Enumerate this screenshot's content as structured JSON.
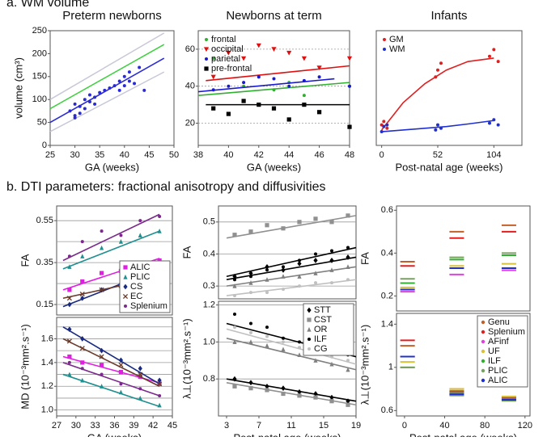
{
  "sections": [
    {
      "title": "a. WM volume"
    },
    {
      "title": "b. DTI parameters: fractional anisotropy and diffusivities"
    }
  ],
  "chart_data": [
    {
      "type": "scatter",
      "title": "Preterm newborns",
      "xlabel": "GA (weeks)",
      "ylabel": "volume (cm³)",
      "xlim": [
        25,
        50
      ],
      "xticks": [
        25,
        30,
        35,
        40,
        45,
        50
      ],
      "ylim": [
        0,
        250
      ],
      "yticks": [
        0,
        50,
        100,
        150,
        200,
        250
      ],
      "grid": false,
      "series": [
        {
          "color": "#2b2bd6",
          "marker": "circle",
          "x": [
            29,
            30,
            30,
            31,
            31,
            32,
            33,
            33,
            34,
            35,
            36,
            37,
            38,
            39,
            39,
            40,
            40,
            41,
            41,
            42,
            43,
            44,
            30,
            32,
            34
          ],
          "values": [
            75,
            60,
            90,
            85,
            70,
            100,
            95,
            110,
            105,
            115,
            120,
            125,
            130,
            140,
            120,
            150,
            130,
            160,
            140,
            135,
            170,
            120,
            65,
            80,
            90
          ],
          "fit_x": [
            25,
            48
          ],
          "fit": [
            50,
            190
          ]
        }
      ],
      "lines": [
        {
          "color": "#40d040",
          "x": [
            25,
            48
          ],
          "values": [
            80,
            220
          ]
        },
        {
          "color": "#c8c8d8",
          "x": [
            25,
            48
          ],
          "values": [
            100,
            245
          ]
        },
        {
          "color": "#c8c8d8",
          "x": [
            25,
            48
          ],
          "values": [
            30,
            160
          ]
        }
      ]
    },
    {
      "type": "scatter",
      "title": "Newborns at term",
      "xlabel": "GA (weeks)",
      "xlim": [
        38,
        48
      ],
      "xticks": [
        38,
        40,
        42,
        44,
        46,
        48
      ],
      "ylim": [
        8,
        70
      ],
      "yticks": [
        20,
        40,
        60
      ],
      "grid": true,
      "legend": "upper left",
      "series": [
        {
          "name": "frontal",
          "color": "#30b030",
          "marker": "circle",
          "x": [
            39,
            41,
            42,
            43,
            44,
            45,
            48
          ],
          "values": [
            55,
            40,
            45,
            38,
            42,
            35,
            40
          ],
          "fit_x": [
            38,
            48
          ],
          "fit": [
            35,
            42
          ]
        },
        {
          "name": "occipital",
          "color": "#e01010",
          "marker": "triangle-down",
          "x": [
            39,
            40,
            41,
            42,
            43,
            44,
            45,
            46,
            48
          ],
          "values": [
            45,
            58,
            55,
            62,
            60,
            58,
            55,
            50,
            55
          ],
          "fit_x": [
            38.5,
            48
          ],
          "fit": [
            43,
            51
          ]
        },
        {
          "name": "parietal",
          "color": "#1a1ad0",
          "marker": "circle",
          "x": [
            39,
            40,
            41,
            42,
            43,
            44,
            45,
            46,
            48
          ],
          "values": [
            38,
            40,
            42,
            45,
            44,
            40,
            43,
            45,
            40
          ],
          "fit_x": [
            38,
            47
          ],
          "fit": [
            37,
            44
          ]
        },
        {
          "name": "pre-frontal",
          "color": "#000000",
          "marker": "square",
          "x": [
            39,
            40,
            41,
            42,
            43,
            44,
            45,
            46,
            48
          ],
          "values": [
            28,
            25,
            32,
            30,
            28,
            22,
            30,
            26,
            18
          ],
          "fit_x": [
            38.5,
            48
          ],
          "fit": [
            30,
            30
          ]
        }
      ]
    },
    {
      "type": "scatter",
      "title": "Infants",
      "xlabel": "Post-natal age (weeks)",
      "xlim": [
        -5,
        130
      ],
      "xticks": [
        0,
        52,
        104
      ],
      "ylim": [
        80,
        750
      ],
      "legend": "upper left",
      "series": [
        {
          "name": "GM",
          "color": "#e02020",
          "marker": "circle",
          "x": [
            0,
            2,
            5,
            50,
            52,
            55,
            100,
            104,
            108
          ],
          "values": [
            200,
            220,
            180,
            480,
            520,
            560,
            600,
            640,
            570
          ],
          "fit_x": [
            0,
            20,
            40,
            60,
            80,
            104
          ],
          "fit": [
            170,
            330,
            440,
            520,
            570,
            590
          ]
        },
        {
          "name": "WM",
          "color": "#2030d0",
          "marker": "circle",
          "x": [
            0,
            2,
            5,
            50,
            52,
            55,
            100,
            104,
            108
          ],
          "values": [
            160,
            190,
            200,
            170,
            200,
            180,
            210,
            230,
            200
          ],
          "fit_x": [
            0,
            20,
            40,
            60,
            80,
            104
          ],
          "fit": [
            160,
            170,
            180,
            190,
            205,
            225
          ]
        }
      ]
    },
    {
      "type": "scatter",
      "ylabel": "FA",
      "xlim": [
        27,
        45
      ],
      "ylim": [
        0.1,
        0.62
      ],
      "yticks": [
        0.15,
        0.35,
        0.55
      ],
      "minor_yticks": [
        0.25,
        0.45
      ],
      "grid": true,
      "legend": "lower right",
      "x": [
        29,
        31,
        34,
        37,
        40,
        43
      ],
      "series": [
        {
          "name": "ALIC",
          "color": "#e020e0",
          "marker": "square",
          "values": [
            0.22,
            0.26,
            0.3,
            0.31,
            0.33,
            0.36
          ],
          "fit_x": [
            28,
            43
          ],
          "fit": [
            0.22,
            0.37
          ]
        },
        {
          "name": "PLIC",
          "color": "#208f8f",
          "marker": "triangle",
          "values": [
            0.33,
            0.38,
            0.42,
            0.45,
            0.48,
            0.5
          ],
          "fit_x": [
            28,
            43
          ],
          "fit": [
            0.32,
            0.5
          ]
        },
        {
          "name": "CS",
          "color": "#1a2a80",
          "marker": "diamond",
          "values": [
            0.15,
            0.18,
            0.22,
            0.25,
            0.28,
            0.31
          ],
          "fit_x": [
            28,
            43
          ],
          "fit": [
            0.14,
            0.32
          ]
        },
        {
          "name": "EC",
          "color": "#6a3a2a",
          "marker": "x",
          "values": [
            0.18,
            0.2,
            0.22,
            0.24,
            0.26,
            0.28
          ],
          "fit_x": [
            28,
            43
          ],
          "fit": [
            0.18,
            0.28
          ]
        },
        {
          "name": "Splenium",
          "color": "#7a2a8a",
          "marker": "circle",
          "values": [
            0.38,
            0.45,
            0.5,
            0.48,
            0.55,
            0.57
          ],
          "fit_x": [
            28,
            43
          ],
          "fit": [
            0.36,
            0.58
          ]
        }
      ]
    },
    {
      "type": "scatter",
      "xlabel": "GA (weeks)",
      "ylabel": "MD (10⁻³mm².s⁻¹)",
      "xlim": [
        27,
        45
      ],
      "xticks": [
        27,
        30,
        33,
        36,
        39,
        42,
        45
      ],
      "ylim": [
        0.95,
        1.78
      ],
      "yticks": [
        {
          "value": 1,
          "label": "1.0"
        },
        1.2,
        1.4,
        1.6
      ],
      "minor_yticks": [
        1.1,
        1.3,
        1.5,
        1.7
      ],
      "grid": true,
      "x": [
        29,
        31,
        34,
        37,
        40,
        43
      ],
      "series": [
        {
          "color": "#e020e0",
          "marker": "square",
          "values": [
            1.45,
            1.4,
            1.38,
            1.32,
            1.28,
            1.22
          ],
          "fit_x": [
            28,
            43
          ],
          "fit": [
            1.45,
            1.23
          ]
        },
        {
          "color": "#208f8f",
          "marker": "triangle",
          "values": [
            1.3,
            1.25,
            1.2,
            1.15,
            1.1,
            1.04
          ],
          "fit_x": [
            28,
            43
          ],
          "fit": [
            1.3,
            1.03
          ]
        },
        {
          "color": "#1a2a80",
          "marker": "diamond",
          "values": [
            1.68,
            1.6,
            1.5,
            1.42,
            1.35,
            1.25
          ],
          "fit_x": [
            28,
            43
          ],
          "fit": [
            1.7,
            1.22
          ]
        },
        {
          "color": "#6a3a2a",
          "marker": "x",
          "values": [
            1.58,
            1.52,
            1.45,
            1.38,
            1.3,
            1.22
          ],
          "fit_x": [
            28,
            43
          ],
          "fit": [
            1.6,
            1.2
          ]
        },
        {
          "color": "#7a2a8a",
          "marker": "circle",
          "values": [
            1.4,
            1.35,
            1.3,
            1.22,
            1.18,
            1.12
          ],
          "fit_x": [
            28,
            43
          ],
          "fit": [
            1.4,
            1.12
          ]
        }
      ]
    },
    {
      "type": "scatter",
      "ylabel": "FA",
      "xlim": [
        2,
        19
      ],
      "ylim": [
        0.26,
        0.55
      ],
      "yticks": [
        0.3,
        0.4,
        0.5
      ],
      "grid": true,
      "x": [
        4,
        6,
        8,
        10,
        12,
        14,
        16,
        18
      ],
      "series": [
        {
          "color": "#000000",
          "marker": "diamond",
          "values": [
            0.33,
            0.34,
            0.36,
            0.35,
            0.37,
            0.38,
            0.38,
            0.39
          ],
          "fit_x": [
            3,
            19
          ],
          "fit": [
            0.32,
            0.39
          ]
        },
        {
          "color": "#909090",
          "marker": "square",
          "values": [
            0.46,
            0.47,
            0.49,
            0.48,
            0.5,
            0.51,
            0.5,
            0.52
          ],
          "fit_x": [
            3,
            19
          ],
          "fit": [
            0.45,
            0.52
          ]
        },
        {
          "color": "#808080",
          "marker": "triangle",
          "values": [
            0.3,
            0.31,
            0.32,
            0.33,
            0.33,
            0.34,
            0.35,
            0.36
          ],
          "fit_x": [
            3,
            19
          ],
          "fit": [
            0.3,
            0.36
          ]
        },
        {
          "color": "#000000",
          "marker": "circle",
          "values": [
            0.32,
            0.33,
            0.35,
            0.36,
            0.38,
            0.4,
            0.41,
            0.42
          ],
          "fit_x": [
            3,
            19
          ],
          "fit": [
            0.33,
            0.42
          ]
        },
        {
          "color": "#c0c0c0",
          "marker": "circle",
          "values": [
            0.27,
            0.28,
            0.28,
            0.29,
            0.3,
            0.31,
            0.31,
            0.32
          ],
          "fit_x": [
            3,
            19
          ],
          "fit": [
            0.27,
            0.32
          ]
        }
      ]
    },
    {
      "type": "scatter",
      "xlabel": "Post-natal age (weeks)",
      "ylabel": "λ⊥(10⁻³mm².s⁻¹)",
      "xlim": [
        2,
        19
      ],
      "xticks": [
        3,
        7,
        11,
        15,
        19
      ],
      "ylim": [
        0.6,
        1.22
      ],
      "yticks": [
        0.8,
        {
          "value": 1,
          "label": "1.0"
        },
        1.2
      ],
      "grid": true,
      "legend": "upper right",
      "x": [
        4,
        6,
        8,
        10,
        12,
        14,
        16,
        18
      ],
      "series": [
        {
          "name": "STT",
          "color": "#000000",
          "marker": "diamond",
          "values": [
            0.8,
            0.78,
            0.76,
            0.75,
            0.73,
            0.72,
            0.7,
            0.68
          ],
          "fit_x": [
            3,
            19
          ],
          "fit": [
            0.8,
            0.68
          ]
        },
        {
          "name": "CST",
          "color": "#909090",
          "marker": "square",
          "values": [
            0.76,
            0.75,
            0.74,
            0.72,
            0.71,
            0.7,
            0.68,
            0.66
          ],
          "fit_x": [
            3,
            19
          ],
          "fit": [
            0.78,
            0.66
          ]
        },
        {
          "name": "OR",
          "color": "#808080",
          "marker": "triangle",
          "values": [
            1.0,
            1.0,
            0.98,
            0.96,
            0.93,
            0.9,
            0.88,
            0.85
          ],
          "fit_x": [
            3,
            19
          ],
          "fit": [
            1.02,
            0.85
          ]
        },
        {
          "name": "ILF",
          "color": "#000000",
          "marker": "circle",
          "values": [
            1.15,
            1.1,
            1.08,
            1.02,
            1.0,
            0.98,
            0.95,
            0.93
          ],
          "fit_x": [
            3,
            19
          ],
          "fit": [
            1.1,
            0.92
          ]
        },
        {
          "name": "CG",
          "color": "#c0c0c0",
          "marker": "circle",
          "values": [
            1.08,
            1.05,
            1.03,
            1.0,
            0.97,
            0.95,
            0.92,
            0.9
          ],
          "fit_x": [
            3,
            19
          ],
          "fit": [
            1.07,
            0.88
          ]
        }
      ]
    },
    {
      "type": "means",
      "ylabel": "FA",
      "xlim": [
        -8,
        125
      ],
      "ylim": [
        0.13,
        0.62
      ],
      "yticks": [
        0.2,
        0.4,
        0.6
      ],
      "x": [
        3,
        52,
        104
      ],
      "series": [
        {
          "color": "#c0602a",
          "values": [
            0.36,
            0.5,
            0.53
          ]
        },
        {
          "color": "#e02020",
          "values": [
            0.34,
            0.47,
            0.5
          ]
        },
        {
          "color": "#e040e0",
          "values": [
            0.22,
            0.3,
            0.32
          ]
        },
        {
          "color": "#d8c23a",
          "values": [
            0.24,
            0.34,
            0.35
          ]
        },
        {
          "color": "#30b030",
          "values": [
            0.26,
            0.37,
            0.39
          ]
        },
        {
          "color": "#7aa060",
          "values": [
            0.28,
            0.38,
            0.4
          ]
        },
        {
          "color": "#2030d0",
          "values": [
            0.23,
            0.33,
            0.33
          ]
        }
      ]
    },
    {
      "type": "means",
      "xlabel": "Post-natal age (weeks)",
      "ylabel": "λ⊥(10⁻³mm².s⁻¹)",
      "xlim": [
        -8,
        125
      ],
      "xticks": [
        0,
        40,
        80,
        120
      ],
      "ylim": [
        0.55,
        1.5
      ],
      "yticks": [
        0.6,
        1,
        1.4
      ],
      "legend": "upper right",
      "x": [
        3,
        52,
        104
      ],
      "series": [
        {
          "name": "Genu",
          "color": "#c0602a",
          "values": [
            1.2,
            0.8,
            0.72
          ]
        },
        {
          "name": "Splenium",
          "color": "#e02020",
          "values": [
            1.25,
            0.78,
            0.72
          ]
        },
        {
          "name": "AFinf",
          "color": "#e040e0",
          "values": [
            1.1,
            0.76,
            0.7
          ]
        },
        {
          "name": "UF",
          "color": "#d8c23a",
          "values": [
            1.05,
            0.8,
            0.73
          ]
        },
        {
          "name": "ILF",
          "color": "#30b030",
          "values": [
            1.0,
            0.77,
            0.71
          ]
        },
        {
          "name": "PLIC",
          "color": "#7aa060",
          "values": [
            1.0,
            0.74,
            0.69
          ]
        },
        {
          "name": "ALIC",
          "color": "#2030d0",
          "values": [
            1.1,
            0.75,
            0.7
          ]
        }
      ]
    }
  ]
}
